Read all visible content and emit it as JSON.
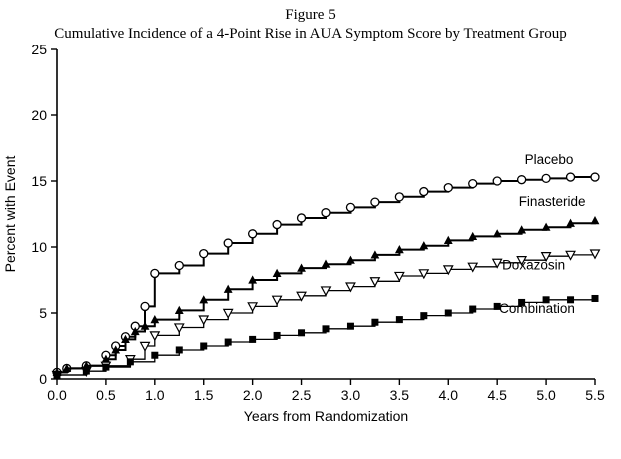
{
  "header": {
    "figure_label": "Figure 5",
    "title": "Cumulative Incidence of a 4-Point Rise in AUA Symptom Score by Treatment Group"
  },
  "chart_data": {
    "type": "line",
    "line_style": "step-after",
    "title": "Figure 5",
    "subtitle": "Cumulative Incidence of a 4-Point Rise in AUA Symptom Score by Treatment Group",
    "xlabel": "Years from Randomization",
    "ylabel": "Percent with Event",
    "xlim": [
      0,
      5.5
    ],
    "ylim": [
      0,
      25
    ],
    "xtick_labels": [
      "0.0",
      "0.5",
      "1.0",
      "1.5",
      "2.0",
      "2.5",
      "3.0",
      "3.5",
      "4.0",
      "4.5",
      "5.0",
      "5.5"
    ],
    "xtick_values": [
      0,
      0.5,
      1,
      1.5,
      2,
      2.5,
      3,
      3.5,
      4,
      4.5,
      5,
      5.5
    ],
    "ytick_labels": [
      "0",
      "5",
      "10",
      "15",
      "20",
      "25"
    ],
    "ytick_values": [
      0,
      5,
      10,
      15,
      20,
      25
    ],
    "grid": false,
    "line_color": "#000000",
    "legend_position": "inline-right-of-curves",
    "series": [
      {
        "name": "Placebo",
        "marker": "circle-open",
        "line_width": 2,
        "label_x": 4.78,
        "label_y": 16.3,
        "x": [
          0,
          0.1,
          0.3,
          0.5,
          0.6,
          0.7,
          0.8,
          0.9,
          1.0,
          1.25,
          1.5,
          1.75,
          2.0,
          2.25,
          2.5,
          2.75,
          3.0,
          3.25,
          3.5,
          3.75,
          4.0,
          4.25,
          4.5,
          4.75,
          5.0,
          5.25,
          5.5
        ],
        "y": [
          0.5,
          0.8,
          1.0,
          1.8,
          2.5,
          3.2,
          4.0,
          5.5,
          8.0,
          8.6,
          9.5,
          10.3,
          11.0,
          11.7,
          12.2,
          12.6,
          13.0,
          13.4,
          13.8,
          14.2,
          14.5,
          14.8,
          15.0,
          15.1,
          15.2,
          15.3,
          15.3
        ]
      },
      {
        "name": "Finasteride",
        "marker": "triangle-up-filled",
        "line_width": 2,
        "label_x": 4.72,
        "label_y": 13.1,
        "x": [
          0,
          0.1,
          0.3,
          0.5,
          0.6,
          0.7,
          0.8,
          0.9,
          1.0,
          1.25,
          1.5,
          1.75,
          2.0,
          2.25,
          2.5,
          2.75,
          3.0,
          3.25,
          3.5,
          3.75,
          4.0,
          4.25,
          4.5,
          4.75,
          5.0,
          5.25,
          5.5
        ],
        "y": [
          0.5,
          0.8,
          1.0,
          1.5,
          2.2,
          3.0,
          3.6,
          4.0,
          4.5,
          5.2,
          6.0,
          6.8,
          7.5,
          8.0,
          8.4,
          8.7,
          9.0,
          9.4,
          9.8,
          10.1,
          10.5,
          10.8,
          11.0,
          11.3,
          11.5,
          11.8,
          12.0
        ]
      },
      {
        "name": "Doxazosin",
        "marker": "triangle-down-open",
        "line_width": 1.3,
        "label_x": 4.55,
        "label_y": 8.3,
        "x": [
          0,
          0.3,
          0.5,
          0.75,
          0.9,
          1.0,
          1.25,
          1.5,
          1.75,
          2.0,
          2.25,
          2.5,
          2.75,
          3.0,
          3.25,
          3.5,
          3.75,
          4.0,
          4.25,
          4.5,
          4.75,
          5.0,
          5.25,
          5.5
        ],
        "y": [
          0.3,
          0.6,
          1.0,
          1.5,
          2.5,
          3.3,
          3.9,
          4.5,
          5.0,
          5.5,
          6.0,
          6.3,
          6.7,
          7.0,
          7.4,
          7.8,
          8.0,
          8.3,
          8.5,
          8.8,
          9.0,
          9.3,
          9.4,
          9.5
        ]
      },
      {
        "name": "Combination",
        "marker": "square-filled",
        "line_width": 1.3,
        "label_x": 4.52,
        "label_y": 5.0,
        "x": [
          0,
          0.3,
          0.5,
          0.75,
          1.0,
          1.25,
          1.5,
          1.75,
          2.0,
          2.25,
          2.5,
          2.75,
          3.0,
          3.25,
          3.5,
          3.75,
          4.0,
          4.25,
          4.5,
          4.75,
          5.0,
          5.25,
          5.5
        ],
        "y": [
          0.3,
          0.6,
          0.9,
          1.3,
          1.8,
          2.2,
          2.5,
          2.8,
          3.0,
          3.3,
          3.5,
          3.8,
          4.0,
          4.3,
          4.5,
          4.8,
          5.0,
          5.3,
          5.5,
          5.8,
          6.0,
          6.0,
          6.1
        ]
      }
    ]
  }
}
